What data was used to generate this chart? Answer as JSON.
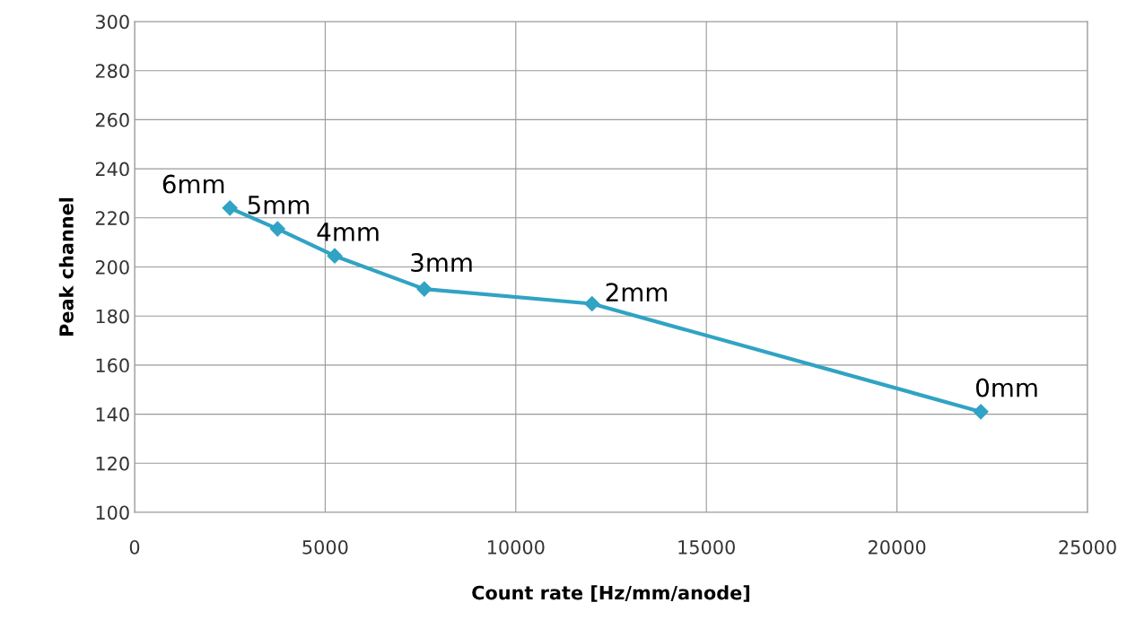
{
  "chart_data": {
    "type": "line",
    "xlabel": "Count rate [Hz/mm/anode]",
    "ylabel": "Peak channel",
    "x": [
      2500,
      3750,
      5250,
      7600,
      12000,
      22200
    ],
    "series": [
      {
        "color": "#31a3c4",
        "values": [
          224,
          215.5,
          204.5,
          191,
          185,
          141
        ]
      }
    ],
    "xlim": [
      0,
      25000
    ],
    "xticks": [
      0,
      5000,
      10000,
      15000,
      20000,
      25000
    ],
    "ylim": [
      100,
      300
    ],
    "yticks": [
      100,
      120,
      140,
      160,
      180,
      200,
      220,
      240,
      260,
      280,
      300
    ],
    "grid": true,
    "marker": "diamond",
    "line_style": "solid",
    "legend": false,
    "annotations": [
      {
        "text": "6mm",
        "x": 2500,
        "y": 224
      },
      {
        "text": "5mm",
        "x": 3750,
        "y": 215.5
      },
      {
        "text": "4mm",
        "x": 5250,
        "y": 204.5
      },
      {
        "text": "3mm",
        "x": 7600,
        "y": 191
      },
      {
        "text": "2mm",
        "x": 12000,
        "y": 185
      },
      {
        "text": "0mm",
        "x": 22200,
        "y": 141
      }
    ]
  }
}
